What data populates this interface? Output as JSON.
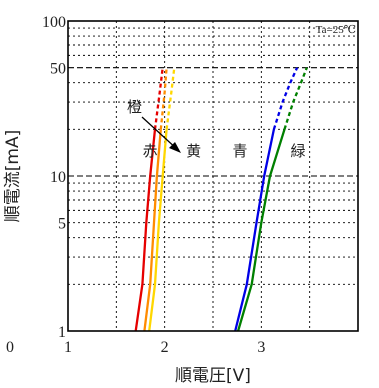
{
  "chart_data": {
    "type": "line",
    "x_scale": "linear",
    "y_scale": "log",
    "xlim": [
      1,
      4
    ],
    "ylim": [
      1,
      100
    ],
    "x_ticks": [
      "1",
      "2",
      "3"
    ],
    "x_left_label": "0",
    "y_ticks": [
      "1",
      "5",
      "10",
      "50",
      "100"
    ],
    "xlabel": "順電圧[V]",
    "ylabel": "順電流[mA]",
    "condition": "Ta=25℃",
    "annotations": [
      "赤",
      "黄",
      "青",
      "緑"
    ],
    "callout": "橙",
    "series": [
      {
        "color": "#e60000",
        "solid": [
          [
            1.7,
            1
          ],
          [
            1.77,
            2
          ],
          [
            1.81,
            5
          ],
          [
            1.85,
            10
          ],
          [
            1.9,
            20
          ]
        ],
        "dashed": [
          [
            1.9,
            20
          ],
          [
            1.95,
            35
          ],
          [
            1.98,
            50
          ]
        ]
      },
      {
        "color": "#ff8c00",
        "solid": [
          [
            1.79,
            1
          ],
          [
            1.85,
            2
          ],
          [
            1.89,
            5
          ],
          [
            1.92,
            10
          ],
          [
            1.96,
            20
          ]
        ],
        "dashed": [
          [
            1.96,
            20
          ],
          [
            2.0,
            35
          ],
          [
            2.02,
            50
          ]
        ]
      },
      {
        "color": "#ffd700",
        "solid": [
          [
            1.84,
            1
          ],
          [
            1.9,
            2
          ],
          [
            1.94,
            5
          ],
          [
            1.98,
            10
          ],
          [
            2.02,
            20
          ]
        ],
        "dashed": [
          [
            2.02,
            20
          ],
          [
            2.07,
            35
          ],
          [
            2.1,
            50
          ]
        ]
      },
      {
        "color": "#0000e6",
        "solid": [
          [
            2.73,
            1
          ],
          [
            2.85,
            2
          ],
          [
            2.95,
            5
          ],
          [
            3.03,
            10
          ],
          [
            3.13,
            20
          ]
        ],
        "dashed": [
          [
            3.13,
            20
          ],
          [
            3.22,
            30
          ],
          [
            3.3,
            40
          ],
          [
            3.37,
            50
          ]
        ]
      },
      {
        "color": "#008000",
        "solid": [
          [
            2.76,
            1
          ],
          [
            2.9,
            2
          ],
          [
            3.0,
            5
          ],
          [
            3.09,
            10
          ],
          [
            3.24,
            20
          ]
        ],
        "dashed": [
          [
            3.24,
            20
          ],
          [
            3.33,
            30
          ],
          [
            3.41,
            40
          ],
          [
            3.47,
            50
          ]
        ]
      }
    ]
  }
}
